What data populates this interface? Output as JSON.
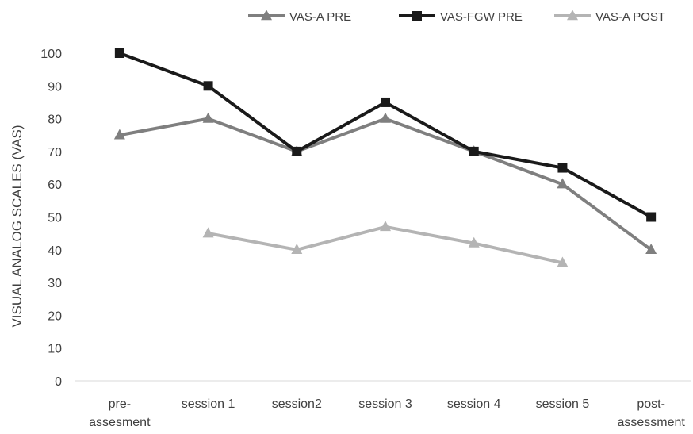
{
  "chart_data": {
    "type": "line",
    "categories": [
      [
        "pre-",
        "assesment"
      ],
      [
        "session 1"
      ],
      [
        "session2"
      ],
      [
        "session 3"
      ],
      [
        "session 4"
      ],
      [
        "session 5"
      ],
      [
        "post-",
        "assessment"
      ]
    ],
    "series": [
      {
        "name": "VAS-A PRE",
        "values": [
          75,
          80,
          70,
          80,
          70,
          60,
          40
        ],
        "color": "#7f7f7f",
        "marker": "triangle"
      },
      {
        "name": "VAS-FGW PRE",
        "values": [
          100,
          90,
          70,
          85,
          70,
          65,
          50
        ],
        "color": "#1a1a1a",
        "marker": "square"
      },
      {
        "name": "VAS-A POST",
        "values": [
          null,
          45,
          40,
          47,
          42,
          36,
          null
        ],
        "color": "#b4b4b4",
        "marker": "triangle"
      }
    ],
    "ylabel": "VISUAL ANALOG SCALES (VAS)",
    "xlabel": "",
    "ylim": [
      0,
      100
    ],
    "yticks": [
      0,
      10,
      20,
      30,
      40,
      50,
      60,
      70,
      80,
      90,
      100
    ],
    "grid": false,
    "legend_position": "top-right"
  }
}
